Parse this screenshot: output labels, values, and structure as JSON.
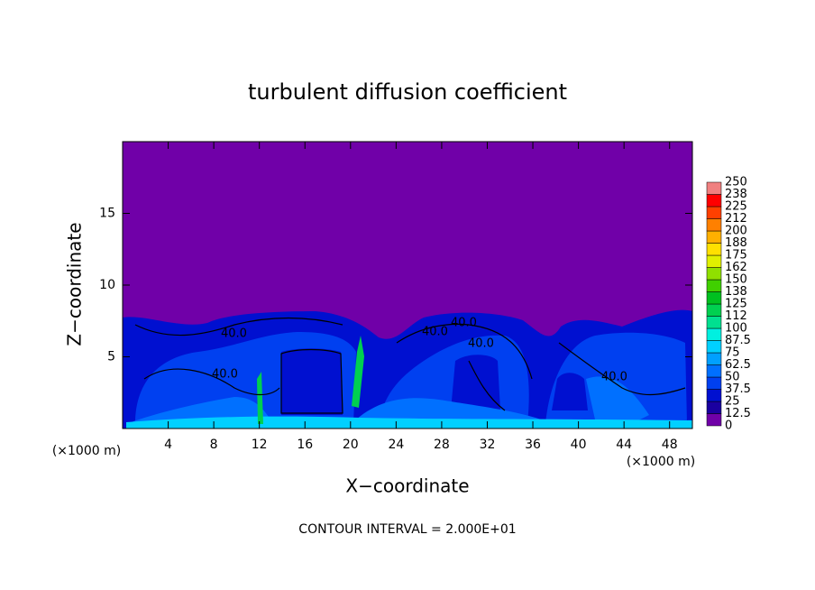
{
  "chart_data": {
    "type": "contour",
    "title": "turbulent diffusion coefficient",
    "x_label": "X−coordinate",
    "y_label": "Z−coordinate",
    "x_unit": "(×1000 m)",
    "y_unit": "(×1000 m)",
    "footer": "CONTOUR INTERVAL = 2.000E+01",
    "xlim": [
      0,
      50
    ],
    "ylim": [
      0,
      20
    ],
    "xticks": [
      4,
      8,
      12,
      16,
      20,
      24,
      28,
      32,
      36,
      40,
      44,
      48
    ],
    "yticks": [
      5,
      10,
      15
    ],
    "colorbar_levels": [
      0,
      12.5,
      25,
      37.5,
      50,
      62.5,
      75,
      87.5,
      100,
      112,
      125,
      138,
      150,
      162,
      175,
      188,
      200,
      212,
      225,
      238,
      250
    ],
    "colors": [
      "#7000a8",
      "#1a00a0",
      "#0010d0",
      "#0040f0",
      "#0070ff",
      "#00a0ff",
      "#00d0ff",
      "#00f0e0",
      "#00e090",
      "#00d050",
      "#00c020",
      "#40d000",
      "#90e000",
      "#e0f000",
      "#ffe000",
      "#ffb000",
      "#ff8000",
      "#ff4000",
      "#ff0000",
      "#f08080"
    ],
    "contour_labels": [
      "40.0",
      "40.0",
      "40.0",
      "40.0",
      "40.0",
      "40.0"
    ]
  }
}
